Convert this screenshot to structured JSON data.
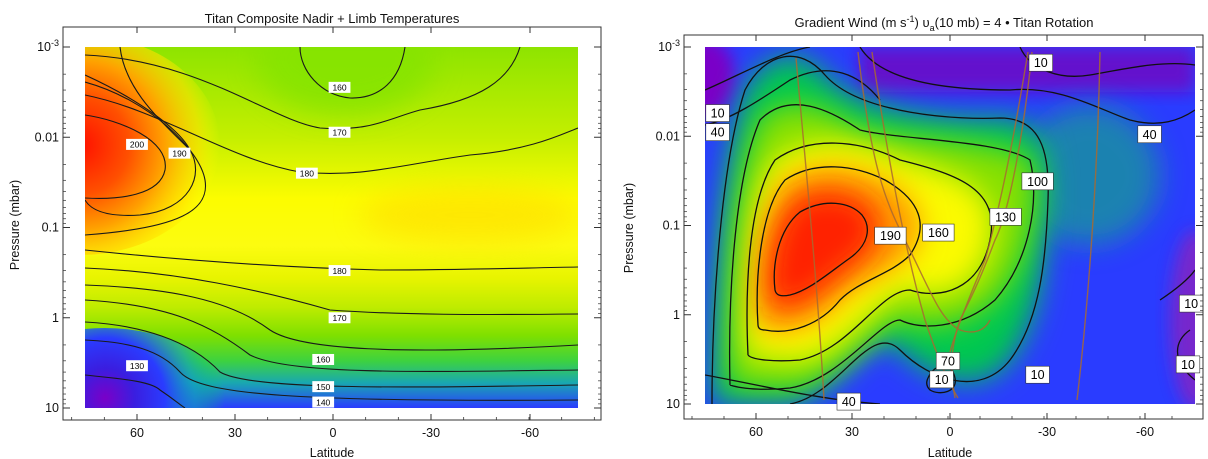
{
  "chart_data": [
    {
      "type": "heatmap",
      "title": "Titan Composite Nadir + Limb Temperatures",
      "xlabel": "Latitude",
      "ylabel": "Pressure (mbar)",
      "x_ticks": [
        "60",
        "30",
        "0",
        "-30",
        "-60"
      ],
      "y_ticks": [
        "10^-3",
        "0.01",
        "0.1",
        "1",
        "10"
      ],
      "y_scale": "log",
      "y_inverted": true,
      "xlim": [
        80,
        -80
      ],
      "ylim": [
        10,
        0.001
      ],
      "colormap": [
        "#7a00c8",
        "#2a3cff",
        "#00d060",
        "#9be600",
        "#ffff00",
        "#ff9000",
        "#ff1000"
      ],
      "contour_levels": [
        130,
        140,
        150,
        160,
        170,
        180,
        190,
        200
      ],
      "contour_labels": [
        {
          "text": "200",
          "lat": 60,
          "p": 0.012
        },
        {
          "text": "190",
          "lat": 47,
          "p": 0.015
        },
        {
          "text": "160",
          "lat": -2,
          "p": 0.0028
        },
        {
          "text": "170",
          "lat": -2,
          "p": 0.0088
        },
        {
          "text": "180",
          "lat": 8,
          "p": 0.025
        },
        {
          "text": "180",
          "lat": -2,
          "p": 0.3
        },
        {
          "text": "170",
          "lat": -2,
          "p": 1.0
        },
        {
          "text": "160",
          "lat": 3,
          "p": 2.9
        },
        {
          "text": "150",
          "lat": 3,
          "p": 5.8
        },
        {
          "text": "140",
          "lat": 3,
          "p": 8.6
        },
        {
          "text": "130",
          "lat": 60,
          "p": 3.4
        }
      ]
    },
    {
      "type": "heatmap",
      "title": "Gradient Wind (m s⁻¹)   υₐ(10 mb) = 4 • Titan Rotation",
      "title_parts": {
        "prefix": "Gradient Wind (m s",
        "sup": "-1",
        "mid": ")   υ",
        "sub": "a",
        "suffix": "(10 mb) = 4 • Titan Rotation"
      },
      "xlabel": "Latitude",
      "ylabel": "Pressure (mbar)",
      "x_ticks": [
        "60",
        "30",
        "0",
        "-30",
        "-60"
      ],
      "y_ticks": [
        "10^-3",
        "0.01",
        "0.1",
        "1",
        "10"
      ],
      "y_scale": "log",
      "y_inverted": true,
      "xlim": [
        80,
        -80
      ],
      "ylim": [
        10,
        0.001
      ],
      "colormap": [
        "#7a00c8",
        "#2a3cff",
        "#00d060",
        "#9be600",
        "#ffff00",
        "#ff9000",
        "#ff1000"
      ],
      "contour_levels": [
        10,
        40,
        70,
        100,
        130,
        160,
        190
      ],
      "contour_labels": [
        {
          "text": "10",
          "lat": 72,
          "p": 0.0055
        },
        {
          "text": "40",
          "lat": 72,
          "p": 0.009
        },
        {
          "text": "190",
          "lat": 18,
          "p": 0.13
        },
        {
          "text": "160",
          "lat": 3,
          "p": 0.12
        },
        {
          "text": "130",
          "lat": -18,
          "p": 0.08
        },
        {
          "text": "100",
          "lat": -28,
          "p": 0.032
        },
        {
          "text": "10",
          "lat": -29,
          "p": 0.0015
        },
        {
          "text": "40",
          "lat": -63,
          "p": 0.0095
        },
        {
          "text": "10",
          "lat": -76,
          "p": 0.75
        },
        {
          "text": "10",
          "lat": -75,
          "p": 3.6
        },
        {
          "text": "70",
          "lat": 0,
          "p": 3.3
        },
        {
          "text": "10",
          "lat": 2,
          "p": 5.3
        },
        {
          "text": "10",
          "lat": -28,
          "p": 4.7
        },
        {
          "text": "40",
          "lat": 31,
          "p": 9.4
        }
      ]
    }
  ]
}
